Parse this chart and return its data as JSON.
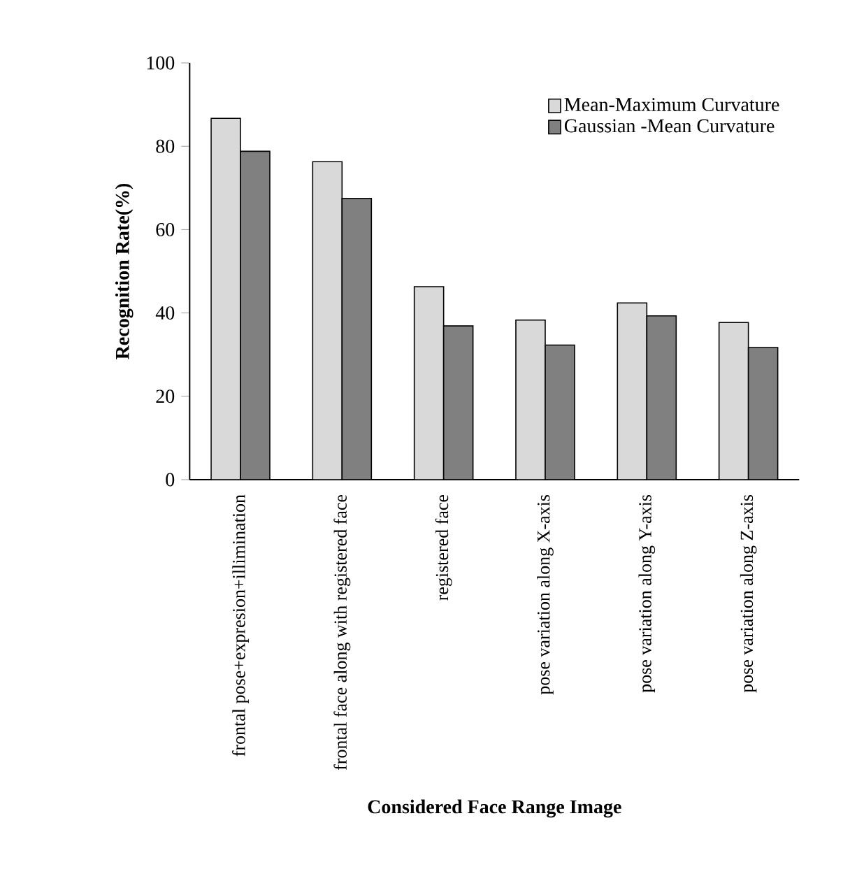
{
  "chart_data": {
    "type": "bar",
    "xlabel": "Considered Face Range Image",
    "ylabel": "Recognition Rate(%)",
    "categories": [
      "frontal pose+expresion+illimination",
      "frontal face along with registered face",
      "registered face",
      "pose variation along X-axis",
      "pose variation along Y-axis",
      "pose variation along Z-axis"
    ],
    "series": [
      {
        "name": "Mean-Maximum Curvature",
        "color": "#d9d9d9",
        "values": [
          86.7,
          76.3,
          46.3,
          38.3,
          42.4,
          37.7
        ]
      },
      {
        "name": "Gaussian -Mean Curvature",
        "color": "#808080",
        "values": [
          78.8,
          67.5,
          36.9,
          32.3,
          39.3,
          31.7
        ]
      }
    ],
    "ylim": [
      0,
      100
    ],
    "yticks": [
      0,
      20,
      40,
      60,
      80,
      100
    ],
    "grid": false,
    "legend": "top right"
  }
}
